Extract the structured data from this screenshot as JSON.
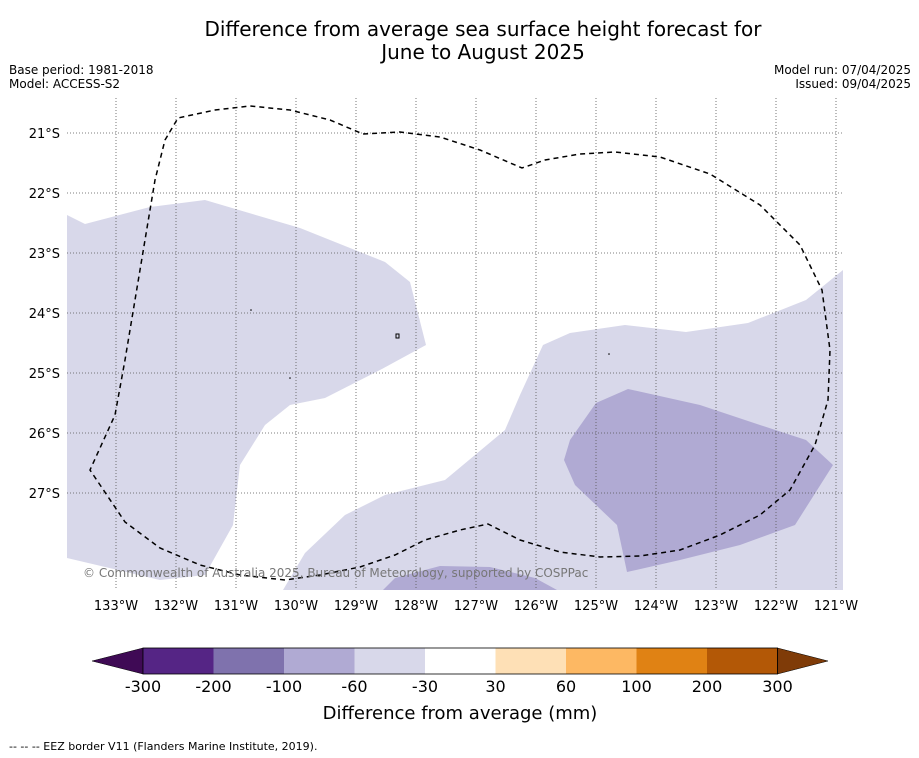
{
  "title_line1": "Difference from average sea surface height forecast for",
  "title_line2": "June to August 2025",
  "base_period": "Base period: 1981-2018",
  "model": "Model: ACCESS-S2",
  "model_run": "Model run: 07/04/2025",
  "issued": "Issued: 09/04/2025",
  "copyright": "© Commonwealth of Australia 2025, Bureau of Meteorology, supported by COSPPac",
  "footer": "--  --  -- EEZ border V11 (Flanders Marine Institute, 2019).",
  "map": {
    "lon_labels": [
      "133°W",
      "132°W",
      "131°W",
      "130°W",
      "129°W",
      "128°W",
      "127°W",
      "126°W",
      "125°W",
      "124°W",
      "123°W",
      "122°W",
      "121°W"
    ],
    "lat_labels": [
      "21°S",
      "22°S",
      "23°S",
      "24°S",
      "25°S",
      "26°S",
      "27°S"
    ]
  },
  "colorbar": {
    "label": "Difference from average (mm)",
    "ticks": [
      "-300",
      "-200",
      "-100",
      "-60",
      "-30",
      "30",
      "60",
      "100",
      "200",
      "300"
    ],
    "colors": [
      "#3f0a55",
      "#552585",
      "#7f72ad",
      "#b0aad3",
      "#d8d8ea",
      "#ffffff",
      "#fee0b6",
      "#fdb863",
      "#e08214",
      "#b35806",
      "#7f3b08"
    ]
  },
  "colors": {
    "light_purple": "#d8d8ea",
    "mid_purple": "#b0aad3",
    "grid": "#555555"
  }
}
